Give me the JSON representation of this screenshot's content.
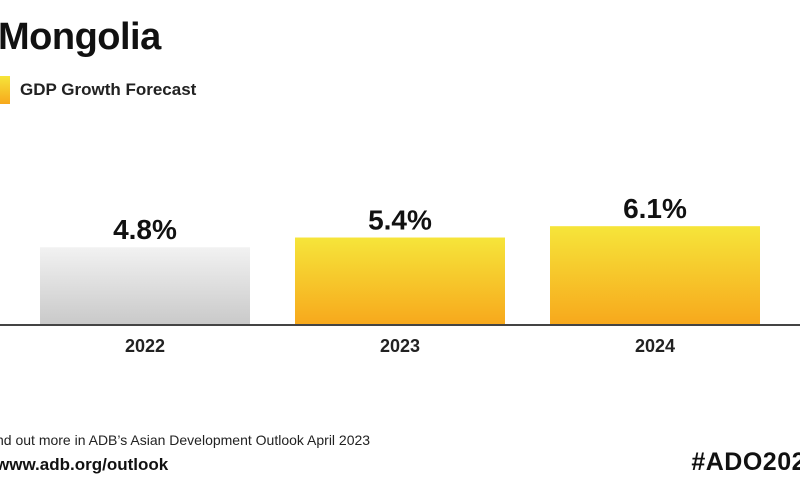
{
  "header": {
    "title": "Mongolia",
    "legend_label": "GDP Growth Forecast"
  },
  "chart_data": {
    "type": "bar",
    "categories": [
      "2022",
      "2023",
      "2024"
    ],
    "values": [
      4.8,
      5.4,
      6.1
    ],
    "value_labels": [
      "4.8%",
      "5.4%",
      "6.1%"
    ],
    "series": [
      {
        "name": "GDP Growth Forecast",
        "values": [
          4.8,
          5.4,
          6.1
        ]
      }
    ],
    "bar_colors": [
      "#d9d9d9",
      "#f6b82a",
      "#f6b82a"
    ],
    "ylim": [
      0,
      6.5
    ],
    "grid": false,
    "legend": "top-left"
  },
  "footer": {
    "note": "nd out more in ADB’s Asian Development Outlook April 2023",
    "url": "www.adb.org/outlook",
    "hashtag": "#ADO202"
  },
  "colors": {
    "forecast_top": "#f6e53a",
    "forecast_bottom": "#f7a81c",
    "actual_top": "#f2f2f2",
    "actual_bottom": "#c9c9c9",
    "axis": "#444444"
  }
}
